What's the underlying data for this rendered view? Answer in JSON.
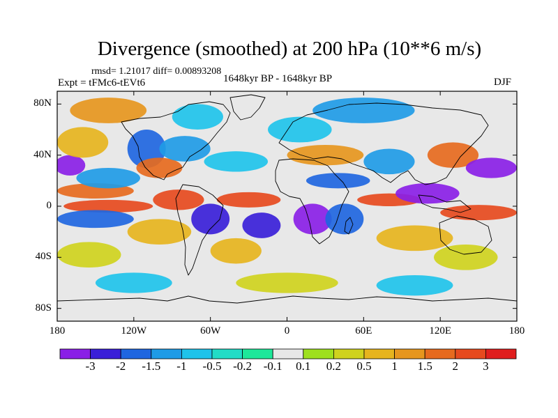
{
  "title": "Divergence (smoothed) at 200 hPa (10**6 m/s)",
  "stats": "rmsd= 1.21017 diff= 0.00893208",
  "experiment": "Expt = tFMc6-tEVt6",
  "period": "1648kyr BP - 1648kyr BP",
  "season": "DJF",
  "map": {
    "lat_ticks": [
      {
        "label": "80N",
        "lat": 80
      },
      {
        "label": "40N",
        "lat": 40
      },
      {
        "label": "0",
        "lat": 0
      },
      {
        "label": "40S",
        "lat": -40
      },
      {
        "label": "80S",
        "lat": -80
      }
    ],
    "lon_ticks": [
      {
        "label": "180",
        "lon": -180
      },
      {
        "label": "120W",
        "lon": -120
      },
      {
        "label": "60W",
        "lon": -60
      },
      {
        "label": "0",
        "lon": 0
      },
      {
        "label": "60E",
        "lon": 60
      },
      {
        "label": "120E",
        "lon": 120
      },
      {
        "label": "180",
        "lon": 180
      }
    ],
    "lat_range": [
      -90,
      90
    ],
    "lon_range": [
      -180,
      180
    ]
  },
  "colorbar": {
    "labels": [
      "-3",
      "-2",
      "-1.5",
      "-1",
      "-0.5",
      "-0.2",
      "-0.1",
      "0.1",
      "0.2",
      "0.5",
      "1",
      "1.5",
      "2",
      "3"
    ],
    "colors": [
      "#8a1fe6",
      "#3a1fd8",
      "#1f66e0",
      "#1f9be6",
      "#1fc3ea",
      "#22dcc6",
      "#1ee89a",
      "#e8e8e8",
      "#9ee01e",
      "#cfd21e",
      "#e6b41e",
      "#e6961e",
      "#e66a1e",
      "#e64a1e",
      "#e01e1e"
    ]
  },
  "field_blobs": [
    {
      "lon": -170,
      "lat": 32,
      "rx": 12,
      "ry": 8,
      "level": -3
    },
    {
      "lon": -150,
      "lat": 12,
      "rx": 30,
      "ry": 6,
      "level": 2
    },
    {
      "lon": -160,
      "lat": 50,
      "rx": 20,
      "ry": 12,
      "level": 1
    },
    {
      "lon": -140,
      "lat": 22,
      "rx": 25,
      "ry": 8,
      "level": -1
    },
    {
      "lon": -140,
      "lat": 0,
      "rx": 35,
      "ry": 5,
      "level": 3
    },
    {
      "lon": -150,
      "lat": -10,
      "rx": 30,
      "ry": 7,
      "level": -1.5
    },
    {
      "lon": -155,
      "lat": -38,
      "rx": 25,
      "ry": 10,
      "level": 0.5
    },
    {
      "lon": -110,
      "lat": 45,
      "rx": 15,
      "ry": 15,
      "level": -1.5
    },
    {
      "lon": -100,
      "lat": 30,
      "rx": 18,
      "ry": 8,
      "level": 2
    },
    {
      "lon": -80,
      "lat": 45,
      "rx": 20,
      "ry": 10,
      "level": -1
    },
    {
      "lon": -70,
      "lat": 70,
      "rx": 20,
      "ry": 10,
      "level": -0.5
    },
    {
      "lon": -60,
      "lat": -10,
      "rx": 15,
      "ry": 12,
      "level": -2
    },
    {
      "lon": -85,
      "lat": 5,
      "rx": 20,
      "ry": 8,
      "level": 3
    },
    {
      "lon": -100,
      "lat": -20,
      "rx": 25,
      "ry": 10,
      "level": 1
    },
    {
      "lon": -40,
      "lat": 35,
      "rx": 25,
      "ry": 8,
      "level": -0.5
    },
    {
      "lon": -30,
      "lat": 5,
      "rx": 25,
      "ry": 6,
      "level": 3
    },
    {
      "lon": -20,
      "lat": -15,
      "rx": 15,
      "ry": 10,
      "level": -2
    },
    {
      "lon": -40,
      "lat": -35,
      "rx": 20,
      "ry": 10,
      "level": 1
    },
    {
      "lon": 10,
      "lat": 60,
      "rx": 25,
      "ry": 10,
      "level": -0.5
    },
    {
      "lon": 30,
      "lat": 40,
      "rx": 30,
      "ry": 8,
      "level": 1.5
    },
    {
      "lon": 40,
      "lat": 20,
      "rx": 25,
      "ry": 6,
      "level": -1.5
    },
    {
      "lon": 20,
      "lat": -10,
      "rx": 15,
      "ry": 12,
      "level": -3
    },
    {
      "lon": 45,
      "lat": -10,
      "rx": 15,
      "ry": 12,
      "level": -1.5
    },
    {
      "lon": 80,
      "lat": 35,
      "rx": 20,
      "ry": 10,
      "level": -1
    },
    {
      "lon": 80,
      "lat": 5,
      "rx": 25,
      "ry": 5,
      "level": 3
    },
    {
      "lon": 110,
      "lat": 10,
      "rx": 25,
      "ry": 8,
      "level": -3
    },
    {
      "lon": 130,
      "lat": 40,
      "rx": 20,
      "ry": 10,
      "level": 2
    },
    {
      "lon": 160,
      "lat": 30,
      "rx": 20,
      "ry": 8,
      "level": -3
    },
    {
      "lon": 150,
      "lat": -5,
      "rx": 30,
      "ry": 6,
      "level": 3
    },
    {
      "lon": 100,
      "lat": -25,
      "rx": 30,
      "ry": 10,
      "level": 1
    },
    {
      "lon": 140,
      "lat": -40,
      "rx": 25,
      "ry": 10,
      "level": 0.5
    },
    {
      "lon": 60,
      "lat": 75,
      "rx": 40,
      "ry": 10,
      "level": -1
    },
    {
      "lon": -140,
      "lat": 75,
      "rx": 30,
      "ry": 10,
      "level": 1.5
    },
    {
      "lon": 0,
      "lat": -60,
      "rx": 40,
      "ry": 8,
      "level": 0.5
    },
    {
      "lon": -120,
      "lat": -60,
      "rx": 30,
      "ry": 8,
      "level": -0.5
    },
    {
      "lon": 100,
      "lat": -62,
      "rx": 30,
      "ry": 8,
      "level": -0.5
    }
  ]
}
